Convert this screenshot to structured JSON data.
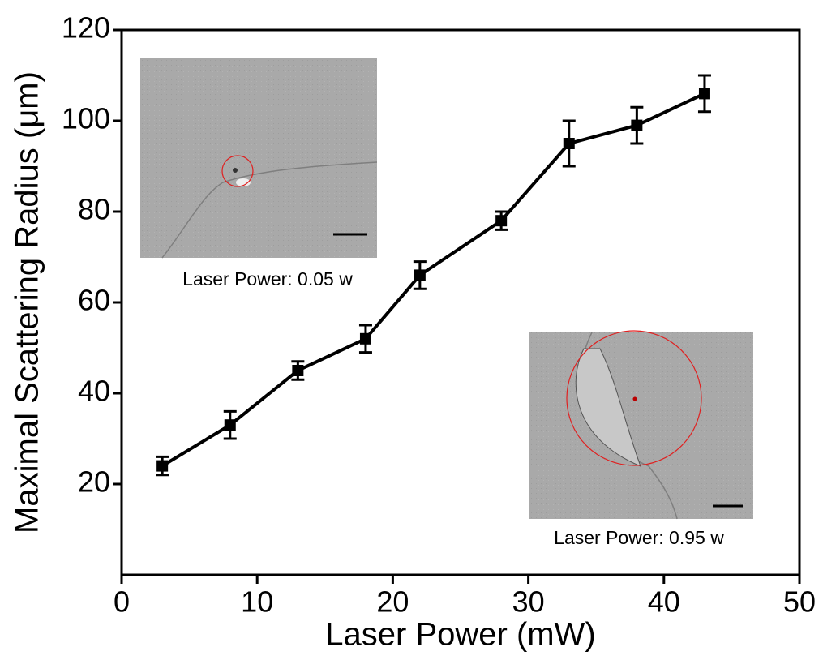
{
  "chart_data": {
    "type": "line",
    "xlabel": "Laser Power (mW)",
    "ylabel": "Maximal Scattering Radius (μm)",
    "x": [
      3,
      8,
      13,
      18,
      22,
      28,
      33,
      38,
      43
    ],
    "series": [
      {
        "color": "#000000",
        "values": [
          24,
          33,
          45,
          52,
          66,
          78,
          95,
          99,
          106
        ],
        "errors": [
          2,
          3,
          2,
          3,
          3,
          2,
          5,
          4,
          4
        ]
      }
    ],
    "xlim": [
      0,
      50
    ],
    "xticks": [
      0,
      10,
      20,
      30,
      40,
      50
    ],
    "ylim": [
      0,
      120
    ],
    "yticks": [
      20,
      40,
      60,
      80,
      100,
      120
    ],
    "annotations": [
      "Laser Power: 0.05 w",
      "Laser Power: 0.95 w"
    ]
  }
}
